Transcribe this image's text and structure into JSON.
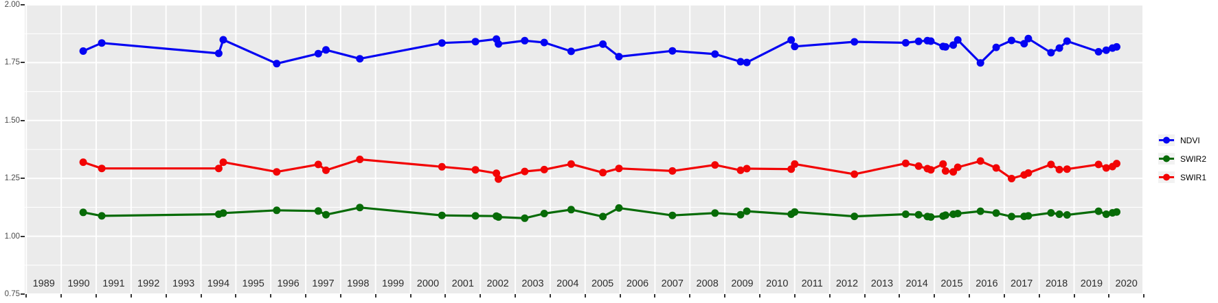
{
  "chart_data": {
    "type": "line",
    "title": "",
    "xlabel": "",
    "ylabel": "",
    "ylim": [
      0.75,
      2.0
    ],
    "grid": true,
    "panel_background": "#EBEBEB",
    "grid_color": "#FFFFFF",
    "x_tick_labels": [
      "1989",
      "1990",
      "1991",
      "1992",
      "1993",
      "1994",
      "1995",
      "1996",
      "1997",
      "1998",
      "1999",
      "2000",
      "2001",
      "2002",
      "2003",
      "2004",
      "2005",
      "2006",
      "2007",
      "2008",
      "2009",
      "2010",
      "2011",
      "2012",
      "2013",
      "2014",
      "2015",
      "2016",
      "2017",
      "2018",
      "2019",
      "2020"
    ],
    "y_tick_labels": [
      "0.75",
      "1.00",
      "1.25",
      "1.50",
      "1.75",
      "2.00"
    ],
    "x": [
      1990.13,
      1990.66,
      1994.01,
      1994.14,
      1995.67,
      1996.86,
      1997.08,
      1998.05,
      2000.4,
      2001.36,
      2001.96,
      2002.02,
      2002.77,
      2003.33,
      2004.1,
      2005.01,
      2005.47,
      2007.0,
      2008.22,
      2008.95,
      2009.13,
      2010.4,
      2010.5,
      2012.21,
      2013.68,
      2014.05,
      2014.3,
      2014.4,
      2014.75,
      2014.82,
      2015.04,
      2015.17,
      2015.82,
      2016.27,
      2016.71,
      2017.07,
      2017.19,
      2017.84,
      2018.08,
      2018.3,
      2019.2,
      2019.42,
      2019.6,
      2019.72
    ],
    "series": [
      {
        "name": "NDVI",
        "color": "#0404F2",
        "values": [
          1.8,
          1.835,
          1.79,
          1.849,
          1.746,
          1.789,
          1.805,
          1.767,
          1.835,
          1.841,
          1.852,
          1.831,
          1.845,
          1.837,
          1.799,
          1.83,
          1.776,
          1.801,
          1.787,
          1.754,
          1.751,
          1.848,
          1.82,
          1.84,
          1.836,
          1.842,
          1.845,
          1.843,
          1.82,
          1.818,
          1.826,
          1.848,
          1.749,
          1.816,
          1.846,
          1.832,
          1.854,
          1.793,
          1.813,
          1.843,
          1.797,
          1.804,
          1.813,
          1.818
        ]
      },
      {
        "name": "SWIR2",
        "color": "#076B07",
        "values": [
          1.103,
          1.088,
          1.095,
          1.1,
          1.112,
          1.109,
          1.093,
          1.124,
          1.09,
          1.088,
          1.087,
          1.083,
          1.078,
          1.098,
          1.115,
          1.085,
          1.122,
          1.09,
          1.1,
          1.093,
          1.108,
          1.095,
          1.105,
          1.086,
          1.095,
          1.093,
          1.085,
          1.083,
          1.087,
          1.091,
          1.095,
          1.098,
          1.108,
          1.1,
          1.085,
          1.086,
          1.088,
          1.101,
          1.095,
          1.092,
          1.108,
          1.095,
          1.101,
          1.105
        ]
      },
      {
        "name": "SWIR1",
        "color": "#F20404",
        "values": [
          1.32,
          1.293,
          1.293,
          1.32,
          1.278,
          1.31,
          1.285,
          1.332,
          1.3,
          1.287,
          1.272,
          1.247,
          1.28,
          1.288,
          1.312,
          1.275,
          1.293,
          1.282,
          1.308,
          1.285,
          1.292,
          1.29,
          1.312,
          1.268,
          1.315,
          1.303,
          1.292,
          1.287,
          1.312,
          1.282,
          1.278,
          1.298,
          1.325,
          1.295,
          1.249,
          1.265,
          1.273,
          1.31,
          1.288,
          1.29,
          1.31,
          1.295,
          1.301,
          1.314
        ]
      }
    ],
    "legend": {
      "position": "right",
      "entries": [
        "NDVI",
        "SWIR2",
        "SWIR1"
      ]
    }
  }
}
